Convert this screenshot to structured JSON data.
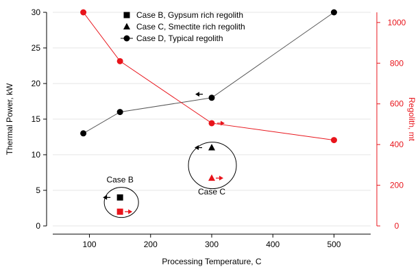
{
  "chart_data": {
    "type": "line",
    "xlabel": "Processing Temperature, C",
    "ylabel_left": "Thermal Power, kW",
    "ylabel_right": "Regolith, mt",
    "xlim": [
      40,
      560
    ],
    "ylim_left": [
      0,
      30
    ],
    "ylim_right": [
      0,
      1050
    ],
    "x_ticks": [
      100,
      200,
      300,
      400,
      500
    ],
    "y_ticks_left": [
      0,
      5,
      10,
      15,
      20,
      25,
      30
    ],
    "y_ticks_right": [
      0,
      200,
      400,
      600,
      800,
      1000
    ],
    "colors": {
      "left_axis": "#000000",
      "right_axis": "#e8141b",
      "connector": "#555555"
    },
    "legend": {
      "placement": "top-center",
      "entries": [
        {
          "label": "Case B, Gypsum rich regolith",
          "marker": "square"
        },
        {
          "label": "Case C, Smectite rich regolith",
          "marker": "triangle"
        },
        {
          "label": "Case D, Typical regolith",
          "marker": "circle",
          "line": true
        }
      ]
    },
    "series": [
      {
        "axis": "left",
        "marker": "circle",
        "line": true,
        "x": [
          90,
          150,
          300,
          500
        ],
        "y": [
          13,
          16,
          18,
          30
        ]
      },
      {
        "axis": "right",
        "marker": "circle",
        "line": true,
        "x": [
          90,
          150,
          300,
          500
        ],
        "y": [
          1050,
          810,
          505,
          422
        ]
      },
      {
        "axis": "left",
        "marker": "square",
        "line": false,
        "x": [
          150
        ],
        "y": [
          4
        ]
      },
      {
        "axis": "right",
        "marker": "square",
        "line": false,
        "x": [
          150
        ],
        "y": [
          70
        ]
      },
      {
        "axis": "left",
        "marker": "triangle",
        "line": false,
        "x": [
          300
        ],
        "y": [
          11
        ]
      },
      {
        "axis": "right",
        "marker": "triangle",
        "line": false,
        "x": [
          300
        ],
        "y": [
          235
        ]
      }
    ],
    "annotations": [
      {
        "text": "Case B",
        "x": 150,
        "y": 6.1
      },
      {
        "text": "Case C",
        "x": 300,
        "y": 4.4
      }
    ]
  }
}
